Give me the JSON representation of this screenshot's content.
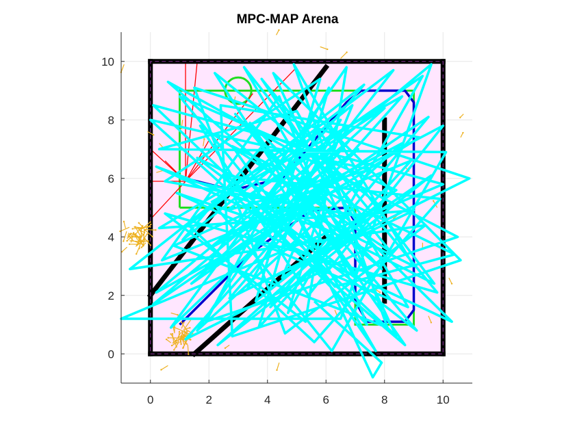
{
  "chart_data": {
    "type": "line",
    "title": "MPC-MAP Arena",
    "xlabel": "",
    "ylabel": "",
    "xlim": [
      -1,
      11
    ],
    "ylim": [
      -1,
      11
    ],
    "xticks": [
      0,
      2,
      4,
      6,
      8,
      10
    ],
    "yticks": [
      0,
      2,
      4,
      6,
      8,
      10
    ],
    "grid": true,
    "arena_fill_color": "#ffe6ff",
    "walls": {
      "color": "#000000",
      "segments": [
        [
          [
            0,
            0
          ],
          [
            10,
            0
          ]
        ],
        [
          [
            10,
            0
          ],
          [
            10,
            10
          ]
        ],
        [
          [
            10,
            10
          ],
          [
            0,
            10
          ]
        ],
        [
          [
            0,
            10
          ],
          [
            0,
            0
          ]
        ],
        [
          [
            1.5,
            0
          ],
          [
            6,
            4
          ]
        ],
        [
          [
            0,
            2
          ],
          [
            6,
            9.8
          ]
        ],
        [
          [
            8,
            1.8
          ],
          [
            8,
            8
          ]
        ]
      ]
    },
    "boundary_dashed": {
      "color": "#7d2e8f",
      "points": [
        [
          0,
          0
        ],
        [
          10,
          0
        ],
        [
          10,
          10
        ],
        [
          0,
          10
        ],
        [
          0,
          0
        ]
      ]
    },
    "green_boundary": {
      "color": "#22dd22",
      "points": [
        [
          1,
          5
        ],
        [
          1,
          9
        ],
        [
          9,
          9
        ],
        [
          9,
          1
        ],
        [
          7,
          1
        ],
        [
          7,
          5
        ],
        [
          1,
          5
        ]
      ]
    },
    "green_circle": {
      "color": "#22dd22",
      "center": [
        3,
        9
      ],
      "r": 0.45
    },
    "blue_path": {
      "color": "#0000cc",
      "points": [
        [
          1,
          1
        ],
        [
          1.5,
          1.5
        ],
        [
          3.5,
          3.5
        ],
        [
          5.5,
          4.9
        ],
        [
          6.7,
          5
        ],
        [
          7.0,
          4.5
        ],
        [
          7.0,
          1.8
        ],
        [
          7.4,
          1.1
        ],
        [
          8.7,
          1.1
        ],
        [
          9.0,
          1.5
        ],
        [
          9.0,
          8.6
        ],
        [
          8.7,
          9.0
        ],
        [
          7.2,
          9.0
        ],
        [
          6.7,
          8.6
        ],
        [
          4.5,
          6.0
        ],
        [
          2.8,
          5.6
        ],
        [
          1.2,
          6.0
        ]
      ]
    },
    "red_rays": {
      "color": "#ff0000",
      "origin": [
        1.2,
        5.9
      ],
      "endpoints": [
        [
          1.2,
          10.0
        ],
        [
          0.0,
          7.0
        ],
        [
          0.0,
          5.9
        ],
        [
          0.0,
          4.6
        ],
        [
          0.5,
          6.6
        ],
        [
          2.0,
          7.3
        ],
        [
          3.5,
          8.9
        ],
        [
          5.0,
          9.8
        ],
        [
          1.6,
          10.0
        ]
      ]
    },
    "particles": {
      "color": "#edb120",
      "clusters": [
        {
          "center": [
            -0.5,
            4.0
          ],
          "count": 45,
          "spread": 0.35
        },
        {
          "center": [
            1.0,
            0.6
          ],
          "count": 35,
          "spread": 0.3
        }
      ],
      "scattered": [
        [
          -0.9,
          9.9
        ],
        [
          4.3,
          10.9
        ],
        [
          5.8,
          10.5
        ],
        [
          10.6,
          7.4
        ],
        [
          10.7,
          8.2
        ],
        [
          9.5,
          1.3
        ],
        [
          9.3,
          3.8
        ],
        [
          9.8,
          5.0
        ],
        [
          0.7,
          1.4
        ],
        [
          0.6,
          -0.4
        ],
        [
          4.4,
          -0.3
        ],
        [
          2.7,
          0.3
        ],
        [
          0.2,
          6.2
        ],
        [
          1.8,
          7.1
        ],
        [
          3.1,
          6.8
        ],
        [
          8.5,
          4.8
        ],
        [
          6.3,
          1.5
        ],
        [
          7.7,
          2.2
        ],
        [
          3.3,
          3.4
        ],
        [
          2.4,
          7.7
        ],
        [
          4.2,
          8.8
        ],
        [
          -0.1,
          7.6
        ],
        [
          10.2,
          2.6
        ],
        [
          0.3,
          7.2
        ],
        [
          1.1,
          8.0
        ],
        [
          8.7,
          6.4
        ],
        [
          2.9,
          8.8
        ],
        [
          6.5,
          10.1
        ]
      ]
    },
    "trajectory": {
      "color": "#00ffff",
      "points": [
        [
          1.0,
          6.0
        ],
        [
          5.5,
          5.0
        ],
        [
          0.2,
          2.1
        ],
        [
          9.6,
          9.9
        ],
        [
          6.5,
          1.2
        ],
        [
          -1.0,
          1.2
        ],
        [
          10.0,
          5.8
        ],
        [
          0.1,
          8.5
        ],
        [
          8.4,
          0.6
        ],
        [
          4.2,
          9.6
        ],
        [
          10.6,
          3.2
        ],
        [
          2.8,
          0.6
        ],
        [
          2.4,
          8.5
        ],
        [
          9.2,
          7.4
        ],
        [
          1.8,
          2.8
        ],
        [
          6.7,
          9.8
        ],
        [
          5.3,
          1.1
        ],
        [
          0.5,
          4.8
        ],
        [
          9.8,
          2.1
        ],
        [
          3.8,
          9.4
        ],
        [
          7.6,
          3.7
        ],
        [
          1.2,
          0.5
        ],
        [
          8.6,
          8.8
        ],
        [
          2.1,
          5.2
        ],
        [
          6.2,
          0.1
        ],
        [
          10.1,
          6.9
        ],
        [
          0.3,
          7.0
        ],
        [
          5.0,
          8.3
        ],
        [
          8.8,
          1.6
        ],
        [
          3.0,
          4.1
        ],
        [
          7.3,
          9.2
        ],
        [
          -0.7,
          2.9
        ],
        [
          9.4,
          4.4
        ],
        [
          4.6,
          0.7
        ],
        [
          1.5,
          9.1
        ],
        [
          10.9,
          6.0
        ],
        [
          2.7,
          1.9
        ],
        [
          6.4,
          6.2
        ],
        [
          0.8,
          3.7
        ],
        [
          8.1,
          0.9
        ],
        [
          4.9,
          9.9
        ],
        [
          9.0,
          3.0
        ],
        [
          1.6,
          6.7
        ],
        [
          7.0,
          2.6
        ],
        [
          3.4,
          7.9
        ],
        [
          10.3,
          1.1
        ],
        [
          0.9,
          5.5
        ],
        [
          5.9,
          3.8
        ],
        [
          2.2,
          9.6
        ],
        [
          7.8,
          5.1
        ],
        [
          4.1,
          1.6
        ],
        [
          9.5,
          8.1
        ],
        [
          0.1,
          1.7
        ],
        [
          6.8,
          7.3
        ],
        [
          3.1,
          3.0
        ],
        [
          8.3,
          9.7
        ],
        [
          1.3,
          4.4
        ],
        [
          5.6,
          0.4
        ],
        [
          9.9,
          5.3
        ],
        [
          2.5,
          6.1
        ],
        [
          7.4,
          1.0
        ],
        [
          4.4,
          8.8
        ],
        [
          0.4,
          3.2
        ],
        [
          8.9,
          6.6
        ],
        [
          3.7,
          0.9
        ],
        [
          6.1,
          9.1
        ],
        [
          1.9,
          1.1
        ],
        [
          10.5,
          4.0
        ],
        [
          5.1,
          6.8
        ],
        [
          0.6,
          9.3
        ],
        [
          7.9,
          2.9
        ],
        [
          2.9,
          8.2
        ],
        [
          9.1,
          0.8
        ],
        [
          4.3,
          4.5
        ],
        [
          0.2,
          6.4
        ],
        [
          6.6,
          4.0
        ],
        [
          3.2,
          9.8
        ],
        [
          8.2,
          3.5
        ],
        [
          1.7,
          7.8
        ],
        [
          5.4,
          2.0
        ],
        [
          10.0,
          7.8
        ],
        [
          2.0,
          3.6
        ],
        [
          7.1,
          7.0
        ],
        [
          0.7,
          0.9
        ],
        [
          5.7,
          7.7
        ],
        [
          9.7,
          2.4
        ],
        [
          3.5,
          5.5
        ],
        [
          8.0,
          8.4
        ],
        [
          1.4,
          2.4
        ],
        [
          6.0,
          5.6
        ],
        [
          4.7,
          1.4
        ],
        [
          9.3,
          9.5
        ],
        [
          2.6,
          4.9
        ],
        [
          7.5,
          6.3
        ],
        [
          0.0,
          8.0
        ],
        [
          5.2,
          3.3
        ],
        [
          8.7,
          0.3
        ],
        [
          3.9,
          7.2
        ],
        [
          1.1,
          3.9
        ],
        [
          6.9,
          8.5
        ],
        [
          4.5,
          2.6
        ],
        [
          9.6,
          6.1
        ],
        [
          2.3,
          0.3
        ],
        [
          7.2,
          4.7
        ],
        [
          0.5,
          5.9
        ],
        [
          5.8,
          9.4
        ],
        [
          3.6,
          1.8
        ],
        [
          8.4,
          5.6
        ],
        [
          1.0,
          8.8
        ],
        [
          6.3,
          2.3
        ],
        [
          10.4,
          3.4
        ],
        [
          2.8,
          7.1
        ],
        [
          7.7,
          0.1
        ],
        [
          4.0,
          6.5
        ],
        [
          0.3,
          4.3
        ],
        [
          9.0,
          4.9
        ],
        [
          3.3,
          2.2
        ],
        [
          6.5,
          8.0
        ],
        [
          1.6,
          0.8
        ],
        [
          8.6,
          7.2
        ],
        [
          4.8,
          5.2
        ],
        [
          7.6,
          -0.8
        ],
        [
          7.9,
          -0.3
        ],
        [
          5.6,
          1.8
        ]
      ]
    }
  }
}
